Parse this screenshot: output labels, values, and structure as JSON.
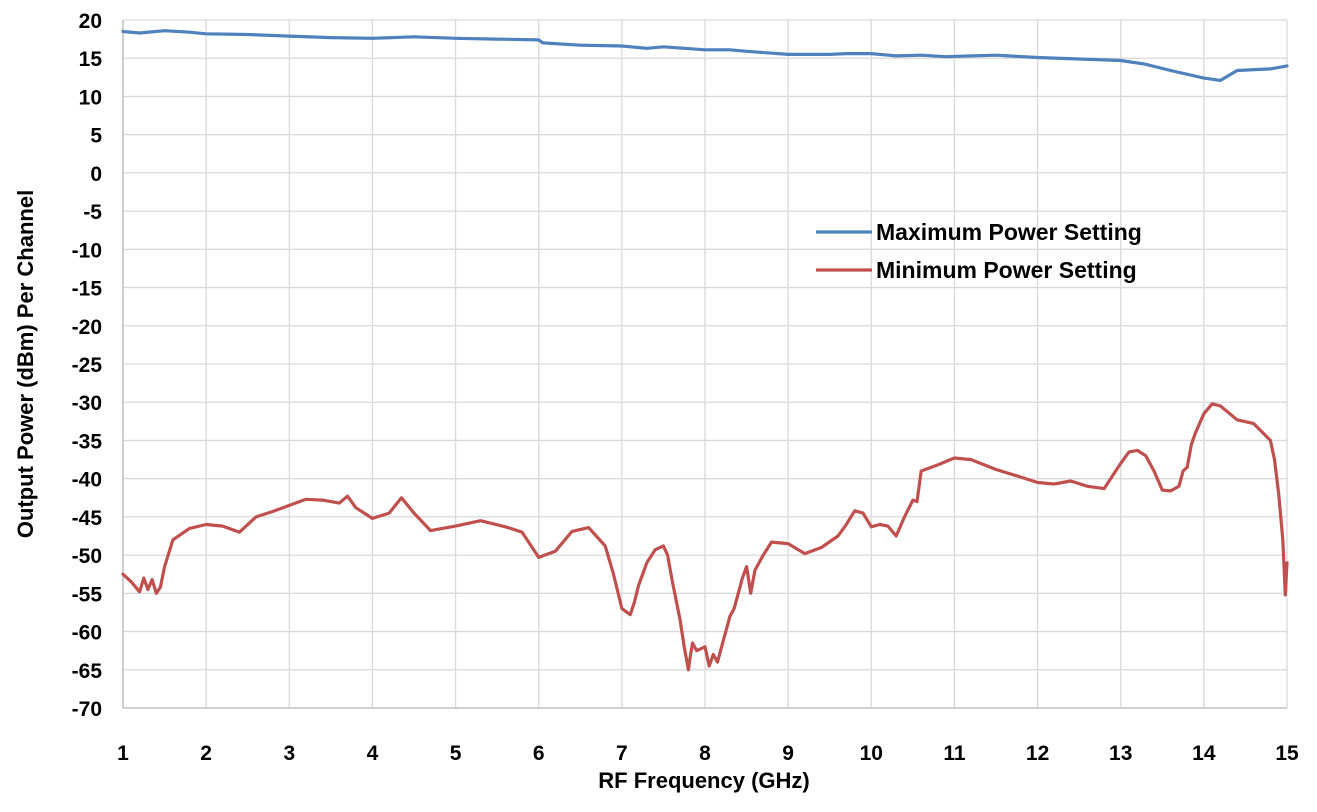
{
  "chart_data": {
    "type": "line",
    "title": "",
    "xlabel": "RF Frequency (GHz)",
    "ylabel": "Output Power (dBm) Per Channel",
    "xlim": [
      1,
      15
    ],
    "ylim": [
      -70,
      20
    ],
    "x_ticks": [
      "1",
      "2",
      "3",
      "4",
      "5",
      "6",
      "7",
      "8",
      "9",
      "10",
      "11",
      "12",
      "13",
      "14",
      "15"
    ],
    "y_ticks": [
      "20",
      "15",
      "10",
      "5",
      "0",
      "-5",
      "-10",
      "-15",
      "-20",
      "-25",
      "-30",
      "-35",
      "-40",
      "-45",
      "-50",
      "-55",
      "-60",
      "-65",
      "-70"
    ],
    "grid": true,
    "legend_position": "right-middle",
    "series": [
      {
        "name": "Maximum Power Setting",
        "color": "#4F81BD",
        "x": [
          1.0,
          1.2,
          1.5,
          1.8,
          2.0,
          2.5,
          3.0,
          3.5,
          4.0,
          4.5,
          5.0,
          5.5,
          6.0,
          6.05,
          6.5,
          7.0,
          7.3,
          7.5,
          8.0,
          8.3,
          8.5,
          9.0,
          9.5,
          9.7,
          10.0,
          10.3,
          10.6,
          10.9,
          11.2,
          11.5,
          12.0,
          12.5,
          13.0,
          13.3,
          13.6,
          14.0,
          14.2,
          14.4,
          14.8,
          15.0
        ],
        "y": [
          18.5,
          18.3,
          18.6,
          18.4,
          18.2,
          18.1,
          17.9,
          17.7,
          17.6,
          17.8,
          17.6,
          17.5,
          17.4,
          17.0,
          16.7,
          16.6,
          16.3,
          16.5,
          16.1,
          16.1,
          15.9,
          15.5,
          15.5,
          15.6,
          15.6,
          15.3,
          15.4,
          15.2,
          15.3,
          15.4,
          15.1,
          14.9,
          14.7,
          14.2,
          13.4,
          12.4,
          12.1,
          13.4,
          13.6,
          14.0
        ]
      },
      {
        "name": "Minimum Power Setting",
        "color": "#C0504D",
        "x": [
          1.0,
          1.1,
          1.2,
          1.25,
          1.3,
          1.35,
          1.4,
          1.45,
          1.5,
          1.6,
          1.8,
          2.0,
          2.2,
          2.4,
          2.6,
          2.8,
          3.0,
          3.2,
          3.4,
          3.6,
          3.7,
          3.8,
          4.0,
          4.2,
          4.35,
          4.5,
          4.7,
          5.0,
          5.3,
          5.6,
          5.8,
          6.0,
          6.2,
          6.4,
          6.6,
          6.8,
          6.9,
          7.0,
          7.1,
          7.15,
          7.2,
          7.3,
          7.4,
          7.5,
          7.55,
          7.6,
          7.7,
          7.75,
          7.8,
          7.82,
          7.85,
          7.9,
          8.0,
          8.05,
          8.1,
          8.15,
          8.2,
          8.25,
          8.3,
          8.35,
          8.4,
          8.45,
          8.5,
          8.55,
          8.6,
          8.7,
          8.8,
          9.0,
          9.2,
          9.4,
          9.6,
          9.7,
          9.8,
          9.9,
          10.0,
          10.1,
          10.2,
          10.3,
          10.4,
          10.5,
          10.55,
          10.6,
          10.8,
          11.0,
          11.2,
          11.5,
          11.8,
          12.0,
          12.2,
          12.4,
          12.6,
          12.8,
          13.0,
          13.1,
          13.2,
          13.3,
          13.4,
          13.5,
          13.6,
          13.7,
          13.75,
          13.8,
          13.85,
          13.9,
          14.0,
          14.1,
          14.2,
          14.4,
          14.6,
          14.8,
          14.85,
          14.9,
          14.95,
          14.98,
          15.0
        ],
        "y": [
          -52.5,
          -53.5,
          -54.8,
          -53.0,
          -54.5,
          -53.2,
          -55.0,
          -54.2,
          -51.5,
          -48.0,
          -46.5,
          -46.0,
          -46.2,
          -47.0,
          -45.0,
          -44.3,
          -43.5,
          -42.7,
          -42.8,
          -43.2,
          -42.3,
          -43.8,
          -45.2,
          -44.5,
          -42.5,
          -44.5,
          -46.8,
          -46.2,
          -45.5,
          -46.3,
          -47.0,
          -50.3,
          -49.5,
          -46.9,
          -46.4,
          -48.8,
          -52.5,
          -57.0,
          -57.8,
          -56.2,
          -54.0,
          -51.0,
          -49.3,
          -48.8,
          -50.0,
          -53.0,
          -58.5,
          -62.0,
          -65.0,
          -63.5,
          -61.5,
          -62.5,
          -62.0,
          -64.5,
          -63.0,
          -64.0,
          -62.0,
          -60.0,
          -58.0,
          -57.0,
          -55.0,
          -53.0,
          -51.5,
          -55.0,
          -52.0,
          -50.0,
          -48.3,
          -48.5,
          -49.8,
          -49.0,
          -47.5,
          -46.0,
          -44.2,
          -44.5,
          -46.3,
          -46.0,
          -46.2,
          -47.5,
          -45.0,
          -42.8,
          -43.0,
          -39.0,
          -38.2,
          -37.3,
          -37.5,
          -38.8,
          -39.8,
          -40.5,
          -40.7,
          -40.3,
          -41.0,
          -41.3,
          -38.0,
          -36.5,
          -36.3,
          -37.0,
          -39.0,
          -41.5,
          -41.6,
          -41.0,
          -39.0,
          -38.5,
          -35.5,
          -34.0,
          -31.5,
          -30.2,
          -30.5,
          -32.3,
          -32.8,
          -35.0,
          -37.5,
          -42.0,
          -48.0,
          -55.2,
          -51.0
        ]
      }
    ]
  }
}
